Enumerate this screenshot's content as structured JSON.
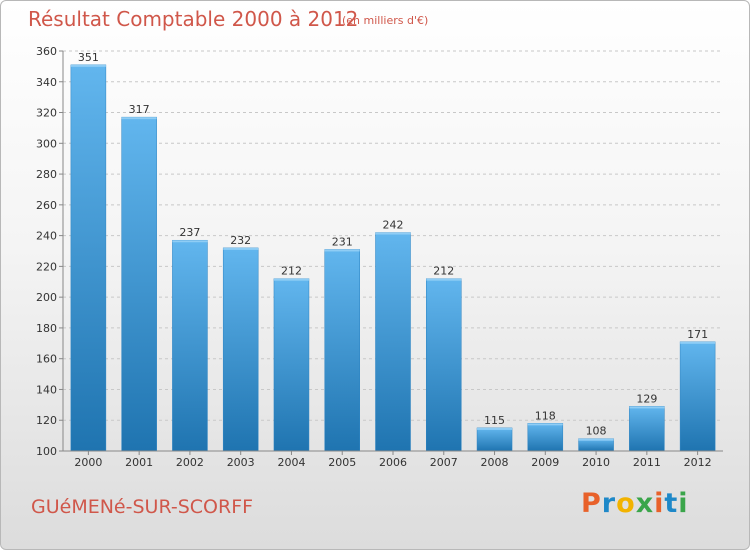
{
  "title": "Résultat Comptable 2000 à 2012",
  "subtitle": "(en milliers d'€)",
  "commune": "GUéMENé-SUR-SCORFF",
  "logo": {
    "letters": [
      "P",
      "r",
      "o",
      "x",
      "i",
      "t",
      "i"
    ],
    "colors": [
      "#e8612a",
      "#1e88c8",
      "#f2b300",
      "#3aa54a",
      "#e8612a",
      "#1e88c8",
      "#3aa54a"
    ]
  },
  "colors": {
    "bar": "#3c9ede",
    "bar_light": "#62b6ee",
    "bar_dark": "#1f74b0",
    "text": "#d0574a"
  },
  "chart_data": {
    "type": "bar",
    "title": "Résultat Comptable 2000 à 2012",
    "subtitle": "(en milliers d'€)",
    "xlabel": "",
    "ylabel": "",
    "categories": [
      "2000",
      "2001",
      "2002",
      "2003",
      "2004",
      "2005",
      "2006",
      "2007",
      "2008",
      "2009",
      "2010",
      "2011",
      "2012"
    ],
    "values": [
      351,
      317,
      237,
      232,
      212,
      231,
      242,
      212,
      115,
      118,
      108,
      129,
      171
    ],
    "ylim": [
      100,
      360
    ],
    "yticks": [
      100,
      120,
      140,
      160,
      180,
      200,
      220,
      240,
      260,
      280,
      300,
      320,
      340,
      360
    ],
    "grid": "horizontal-dashed"
  }
}
